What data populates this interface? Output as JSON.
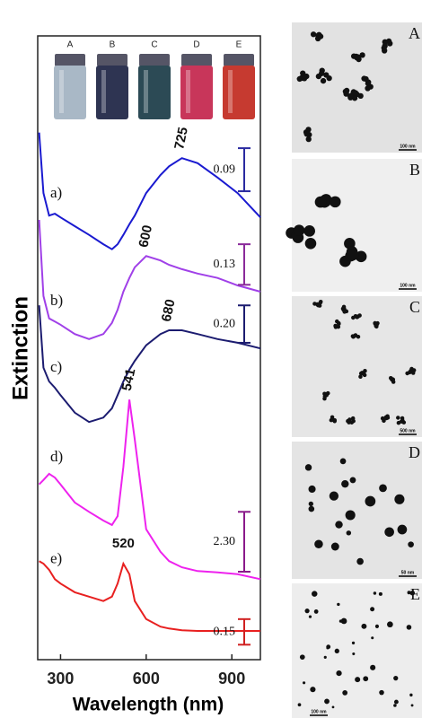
{
  "chart_data": {
    "type": "line",
    "x_label": "Wavelength (nm)",
    "y_label": "Extinction",
    "x": [
      225,
      240,
      260,
      280,
      300,
      350,
      400,
      450,
      480,
      500,
      520,
      541,
      560,
      600,
      650,
      680,
      725,
      780,
      850,
      920,
      1000
    ],
    "xlim": [
      220,
      1000
    ],
    "xticks": [
      300,
      600,
      900
    ],
    "ylim": [
      0,
      100
    ],
    "series": [
      {
        "name": "a)",
        "color": "#1a1ad0",
        "bar_color": "#2a2aa0",
        "peak": 725,
        "scale_bar_label": "0.09",
        "scale_bar_range": [
          75.1,
          82.0
        ],
        "values": [
          84.5,
          74.8,
          71.2,
          71.5,
          70.9,
          69.5,
          68.1,
          66.6,
          65.8,
          66.6,
          68.1,
          69.8,
          71.2,
          74.8,
          77.7,
          79.1,
          80.4,
          79.6,
          77.3,
          74.8,
          70.9
        ]
      },
      {
        "name": "b)",
        "color": "#a040e8",
        "bar_color": "#8a2a9a",
        "peak": 600,
        "scale_bar_label": "0.13",
        "scale_bar_range": [
          60.1,
          66.6
        ],
        "values": [
          70.5,
          58.3,
          54.7,
          54.2,
          53.7,
          52.2,
          51.4,
          52.2,
          54.0,
          56.1,
          59.0,
          61.2,
          62.9,
          64.7,
          64.0,
          63.3,
          62.6,
          61.9,
          61.2,
          60.0,
          59.0
        ]
      },
      {
        "name": "c)",
        "color": "#1c1c70",
        "bar_color": "#1c1c70",
        "peak": 680,
        "scale_bar_label": "0.20",
        "scale_bar_range": [
          50.8,
          56.8
        ],
        "values": [
          56.8,
          46.8,
          44.6,
          43.6,
          42.4,
          39.6,
          38.1,
          38.8,
          40.3,
          42.4,
          44.6,
          46.5,
          47.9,
          50.4,
          52.2,
          52.8,
          52.8,
          52.2,
          51.4,
          50.8,
          49.9
        ]
      },
      {
        "name": "d)",
        "color": "#ee22ee",
        "bar_color": "#8a1a8a",
        "peak": 541,
        "scale_bar_label": "2.30",
        "scale_bar_range": [
          14.1,
          23.7
        ],
        "values": [
          28.1,
          28.8,
          29.8,
          29.2,
          28.1,
          25.2,
          23.7,
          22.3,
          21.6,
          23.0,
          30.9,
          41.7,
          35.3,
          20.9,
          17.3,
          15.8,
          14.8,
          14.2,
          14.0,
          13.7,
          12.9
        ]
      },
      {
        "name": "e)",
        "color": "#e82020",
        "bar_color": "#d02020",
        "peak": 520,
        "scale_bar_label": "0.15",
        "scale_bar_range": [
          2.4,
          6.5
        ],
        "values": [
          15.8,
          15.4,
          14.4,
          12.9,
          12.2,
          10.8,
          10.1,
          9.4,
          10.1,
          12.2,
          15.4,
          13.7,
          9.4,
          6.5,
          5.3,
          5.0,
          4.7,
          4.6,
          4.6,
          4.6,
          4.6
        ]
      }
    ]
  },
  "vials": [
    "A",
    "B",
    "C",
    "D",
    "E"
  ],
  "tem_panels": [
    {
      "label": "A",
      "scale": "100 nm"
    },
    {
      "label": "B",
      "scale": "100 nm"
    },
    {
      "label": "C",
      "scale": "500 nm"
    },
    {
      "label": "D",
      "scale": "50 nm"
    },
    {
      "label": "E",
      "scale": "100 nm"
    }
  ]
}
